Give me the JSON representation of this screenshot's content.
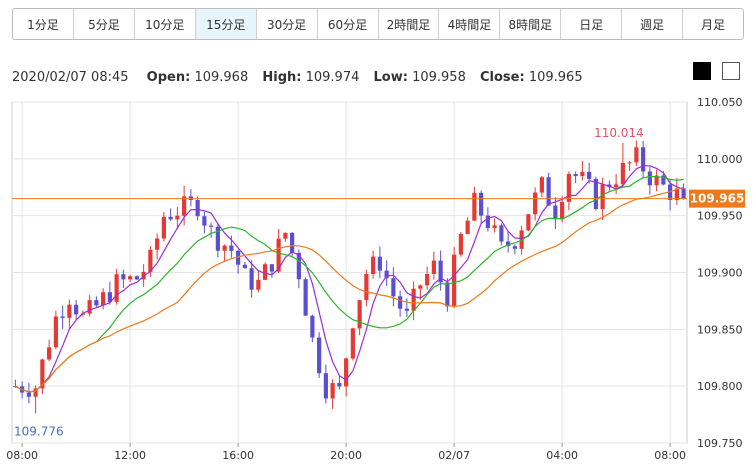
{
  "tabs": [
    {
      "label": "1分足",
      "active": false
    },
    {
      "label": "5分足",
      "active": false
    },
    {
      "label": "10分足",
      "active": false
    },
    {
      "label": "15分足",
      "active": true
    },
    {
      "label": "30分足",
      "active": false
    },
    {
      "label": "60分足",
      "active": false
    },
    {
      "label": "2時間足",
      "active": false
    },
    {
      "label": "4時間足",
      "active": false
    },
    {
      "label": "8時間足",
      "active": false
    },
    {
      "label": "日足",
      "active": false
    },
    {
      "label": "週足",
      "active": false
    },
    {
      "label": "月足",
      "active": false
    }
  ],
  "info": {
    "datetime": "2020/02/07 08:45",
    "open_label": "Open:",
    "open": "109.968",
    "high_label": "High:",
    "high": "109.974",
    "low_label": "Low:",
    "low": "109.958",
    "close_label": "Close:",
    "close": "109.965"
  },
  "theme_buttons": [
    "dark",
    "light"
  ],
  "chart_data": {
    "type": "candlestick",
    "y_ticks": [
      "110.050",
      "110.000",
      "109.950",
      "109.900",
      "109.850",
      "109.800",
      "109.750"
    ],
    "ylim": [
      109.75,
      110.05
    ],
    "x_ticks": [
      "08:00",
      "12:00",
      "16:00",
      "20:00",
      "02/07",
      "04:00",
      "08:00"
    ],
    "x_tick_index": [
      1,
      17,
      33,
      49,
      65,
      81,
      97
    ],
    "bar_count": 100,
    "up_color": "#e53935",
    "down_color": "#5b4fd1",
    "high_annotation": {
      "label": "110.014",
      "value": 110.014,
      "index": 90
    },
    "low_annotation": {
      "label": "109.776",
      "value": 109.776,
      "index": 3
    },
    "current_price": {
      "label": "109.965",
      "value": 109.965,
      "color": "#f07a1a"
    },
    "ma_colors": [
      "#9b2fd6",
      "#2bb52b",
      "#f07a1a"
    ],
    "anchors": [
      [
        0,
        109.8
      ],
      [
        3,
        109.8
      ],
      [
        6,
        109.86
      ],
      [
        8,
        109.88
      ],
      [
        10,
        109.86
      ],
      [
        12,
        109.87
      ],
      [
        15,
        109.89
      ],
      [
        18,
        109.895
      ],
      [
        20,
        109.91
      ],
      [
        22,
        109.95
      ],
      [
        24,
        109.955
      ],
      [
        27,
        109.96
      ],
      [
        29,
        109.935
      ],
      [
        32,
        109.92
      ],
      [
        34,
        109.895
      ],
      [
        36,
        109.89
      ],
      [
        38,
        109.91
      ],
      [
        40,
        109.935
      ],
      [
        42,
        109.9
      ],
      [
        44,
        109.84
      ],
      [
        46,
        109.8
      ],
      [
        48,
        109.795
      ],
      [
        50,
        109.86
      ],
      [
        52,
        109.9
      ],
      [
        54,
        109.91
      ],
      [
        56,
        109.88
      ],
      [
        58,
        109.86
      ],
      [
        60,
        109.89
      ],
      [
        62,
        109.905
      ],
      [
        64,
        109.88
      ],
      [
        66,
        109.93
      ],
      [
        68,
        109.96
      ],
      [
        70,
        109.945
      ],
      [
        72,
        109.92
      ],
      [
        74,
        109.93
      ],
      [
        76,
        109.955
      ],
      [
        78,
        109.975
      ],
      [
        80,
        109.955
      ],
      [
        82,
        109.99
      ],
      [
        84,
        109.98
      ],
      [
        86,
        109.965
      ],
      [
        88,
        109.98
      ],
      [
        90,
        109.99
      ],
      [
        92,
        110.0
      ],
      [
        94,
        109.985
      ],
      [
        96,
        109.975
      ],
      [
        99,
        109.965
      ]
    ]
  }
}
